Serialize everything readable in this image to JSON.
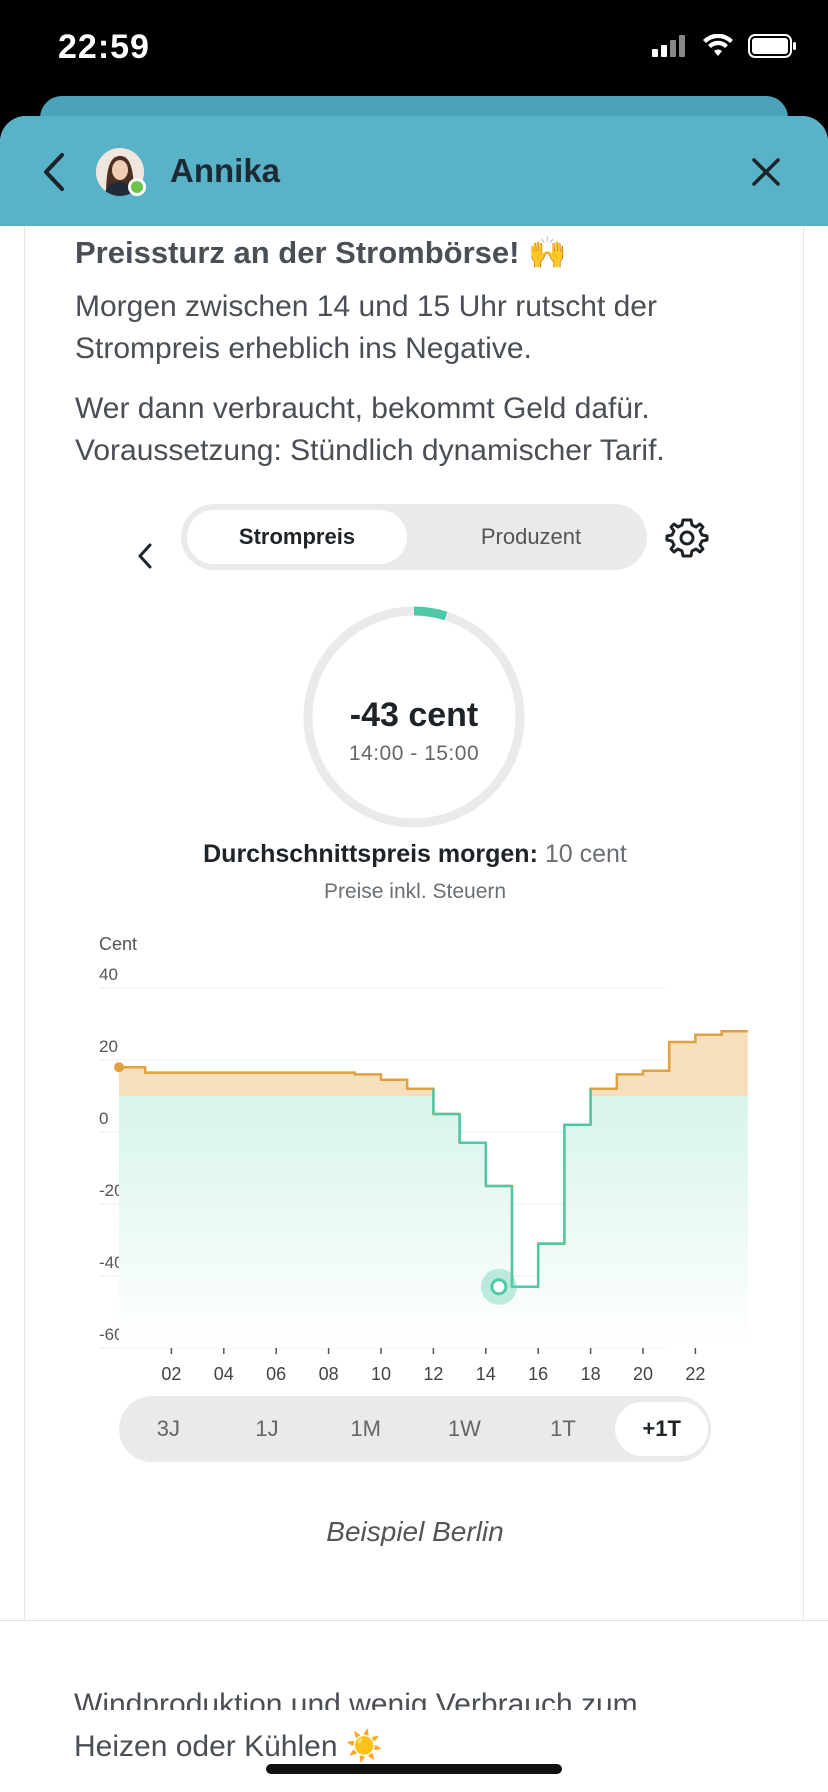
{
  "status": {
    "time": "22:59"
  },
  "header": {
    "name": "Annika"
  },
  "message": {
    "title": "Preissturz an der Strombörse! 🙌",
    "p1": "Morgen zwischen 14 und 15 Uhr rutscht der Strompreis erheblich ins Negative.",
    "p2": "Wer dann verbraucht, bekommt Geld dafür. Voraussetzung: Stündlich dynamischer Tarif."
  },
  "segment": {
    "options": [
      "Strompreis",
      "Produzent"
    ],
    "active": "Strompreis"
  },
  "gauge": {
    "value": "-43 cent",
    "time": "14:00 - 15:00"
  },
  "avg": {
    "label": "Durchschnittspreis morgen:",
    "value": "10 cent",
    "note": "Preise inkl. Steuern"
  },
  "range": {
    "options": [
      "3J",
      "1J",
      "1M",
      "1W",
      "1T",
      "+1T"
    ],
    "active": "+1T"
  },
  "city_label": "Beispiel Berlin",
  "below_text": {
    "line1": "Windproduktion und wenig Verbrauch zum",
    "line2": "Heizen oder Kühlen ☀️"
  },
  "colors": {
    "header": "#58b2c8",
    "teal": "#4ec9a8",
    "orange": "#e2a03f",
    "fill_orange": "#f6dfbd",
    "fill_teal": "#d7f4ec"
  },
  "chart_data": {
    "type": "line",
    "ylabel": "Cent",
    "ylim": [
      -60,
      40
    ],
    "yticks": [
      40,
      20,
      0,
      -20,
      -40,
      -60
    ],
    "xticks": [
      "02",
      "04",
      "06",
      "08",
      "10",
      "12",
      "14",
      "16",
      "18",
      "20",
      "22"
    ],
    "step": true,
    "baseline": 10,
    "hours": [
      0,
      1,
      2,
      3,
      4,
      5,
      6,
      7,
      8,
      9,
      10,
      11,
      12,
      13,
      14,
      15,
      16,
      17,
      18,
      19,
      20,
      21,
      22,
      23
    ],
    "values": [
      18,
      16.5,
      16.5,
      16.5,
      16.5,
      16.5,
      16.5,
      16.5,
      16.5,
      16,
      14.5,
      12,
      5,
      -3,
      -15,
      -43,
      -31,
      2,
      12,
      16,
      17,
      25,
      27,
      28
    ],
    "highlight": {
      "hour": 14,
      "value": -43
    }
  }
}
